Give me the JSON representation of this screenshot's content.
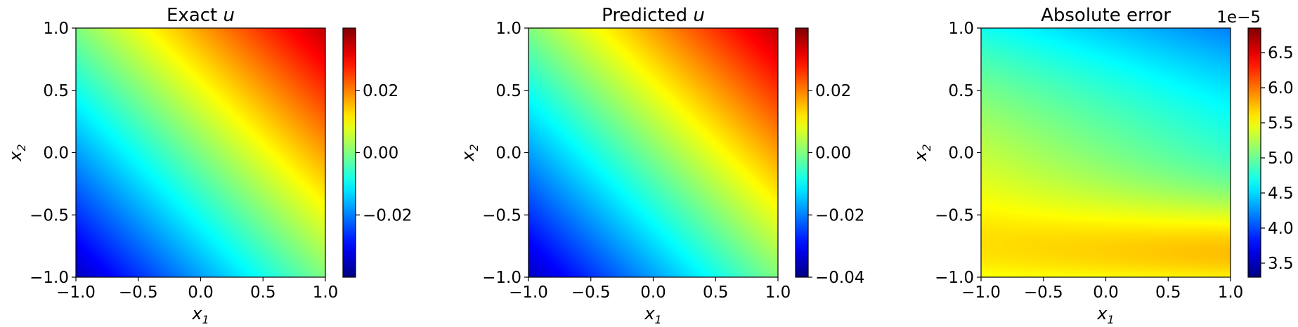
{
  "chart_data": [
    {
      "type": "heatmap",
      "title": "Exact u",
      "title_parts": [
        "Exact ",
        "u"
      ],
      "xlabel": "x1",
      "xlabel_parts": [
        "x",
        "1"
      ],
      "ylabel": "x2",
      "ylabel_parts": [
        "x",
        "2"
      ],
      "xlim": [
        -1.0,
        1.0
      ],
      "ylim": [
        -1.0,
        1.0
      ],
      "xticks": [
        -1.0,
        -0.5,
        0.0,
        0.5,
        1.0
      ],
      "xtick_labels": [
        "−1.0",
        "−0.5",
        "0.0",
        "0.5",
        "1.0"
      ],
      "yticks": [
        -1.0,
        -0.5,
        0.0,
        0.5,
        1.0
      ],
      "ytick_labels": [
        "−1.0",
        "−0.5",
        "0.0",
        "0.5",
        "1.0"
      ],
      "colormap": "jet",
      "field": "linear",
      "field_coefficients": [
        0.0175,
        0.0175,
        0.0
      ],
      "colorbar": {
        "vmin": -0.04,
        "vmax": 0.04,
        "ticks": [
          -0.02,
          0.0,
          0.02
        ],
        "tick_labels": [
          "−0.02",
          "0.00",
          "0.02"
        ],
        "offset_text": ""
      },
      "grid": false
    },
    {
      "type": "heatmap",
      "title": "Predicted u",
      "title_parts": [
        "Predicted ",
        "u"
      ],
      "xlabel": "x1",
      "xlabel_parts": [
        "x",
        "1"
      ],
      "ylabel": "x2",
      "ylabel_parts": [
        "x",
        "2"
      ],
      "xlim": [
        -1.0,
        1.0
      ],
      "ylim": [
        -1.0,
        1.0
      ],
      "xticks": [
        -1.0,
        -0.5,
        0.0,
        0.5,
        1.0
      ],
      "xtick_labels": [
        "−1.0",
        "−0.5",
        "0.0",
        "0.5",
        "1.0"
      ],
      "yticks": [
        -1.0,
        -0.5,
        0.0,
        0.5,
        1.0
      ],
      "ytick_labels": [
        "−1.0",
        "−0.5",
        "0.0",
        "0.5",
        "1.0"
      ],
      "colormap": "jet",
      "field": "linear",
      "field_coefficients": [
        0.0175,
        0.0175,
        0.0
      ],
      "colorbar": {
        "vmin": -0.04,
        "vmax": 0.04,
        "ticks": [
          -0.04,
          -0.02,
          0.0,
          0.02
        ],
        "tick_labels": [
          "−0.04",
          "−0.02",
          "0.00",
          "0.02"
        ],
        "offset_text": ""
      },
      "grid": false
    },
    {
      "type": "heatmap",
      "title": "Absolute error",
      "title_parts": [
        "Absolute error",
        ""
      ],
      "xlabel": "x1",
      "xlabel_parts": [
        "x",
        "1"
      ],
      "ylabel": "x2",
      "ylabel_parts": [
        "x",
        "2"
      ],
      "xlim": [
        -1.0,
        1.0
      ],
      "ylim": [
        -1.0,
        1.0
      ],
      "xticks": [
        -1.0,
        -0.5,
        0.0,
        0.5,
        1.0
      ],
      "xtick_labels": [
        "−1.0",
        "−0.5",
        "0.0",
        "0.5",
        "1.0"
      ],
      "yticks": [
        -1.0,
        -0.5,
        0.0,
        0.5,
        1.0
      ],
      "ytick_labels": [
        "−1.0",
        "−0.5",
        "0.0",
        "0.5",
        "1.0"
      ],
      "colormap": "jet",
      "field": "error",
      "colorbar": {
        "vmin": 3.3,
        "vmax": 6.85,
        "ticks": [
          3.5,
          4.0,
          4.5,
          5.0,
          5.5,
          6.0,
          6.5
        ],
        "tick_labels": [
          "3.5",
          "4.0",
          "4.5",
          "5.0",
          "5.5",
          "6.0",
          "6.5"
        ],
        "offset_text": "1e−5"
      },
      "grid": false
    }
  ]
}
